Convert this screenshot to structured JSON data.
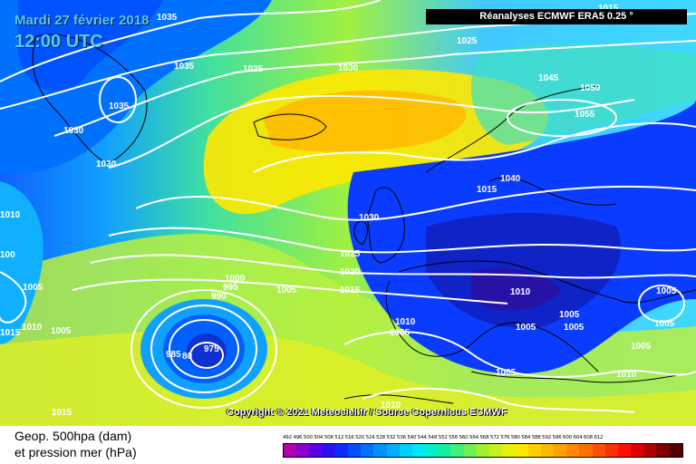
{
  "header": {
    "date": "Mardi 27 février 2018",
    "time": "12:00 UTC",
    "source": "Réanalyses ECMWF ERA5 0.25 °",
    "copyright": "Copyright © 2021 Meteociel.fr / Source Copernicus ECMWF"
  },
  "legend": {
    "field_line1": "Geop. 500hpa (dam)",
    "field_line2": "et pression mer (hPa)",
    "scale_text": "492 496 500 504 508 512 516 520 524 528 532 536 540 544 548 552 556 560 564 568 572 576 580 584 588 592 596 600 604 608 612",
    "scale_colors": [
      "#b000b0",
      "#8a00d0",
      "#5a00e8",
      "#2a10f0",
      "#0a2cff",
      "#0050ff",
      "#0070ff",
      "#0090ff",
      "#00b0ff",
      "#00d0ff",
      "#00e8f0",
      "#00f0c8",
      "#10f0a0",
      "#40f078",
      "#70f050",
      "#a0f030",
      "#c8f020",
      "#e8f010",
      "#ffe800",
      "#ffd000",
      "#ffb800",
      "#ffa000",
      "#ff8800",
      "#ff7000",
      "#ff5000",
      "#ff3000",
      "#ff1000",
      "#e00000",
      "#b00000",
      "#800000",
      "#500000"
    ]
  },
  "isobars": [
    {
      "id": "l1035a",
      "text": "1035"
    },
    {
      "id": "l1035b",
      "text": "1035"
    },
    {
      "id": "l1035c",
      "text": "1035"
    },
    {
      "id": "l1030a",
      "text": "1030"
    },
    {
      "id": "l1030b",
      "text": "1030"
    },
    {
      "id": "l1030c",
      "text": "1030"
    },
    {
      "id": "l1030d",
      "text": "1030"
    },
    {
      "id": "l1025a",
      "text": "1025"
    },
    {
      "id": "l1025b",
      "text": "1025"
    },
    {
      "id": "l1025c",
      "text": "1025"
    },
    {
      "id": "l1020",
      "text": "1020"
    },
    {
      "id": "l1015a",
      "text": "1015"
    },
    {
      "id": "l1015b",
      "text": "1015"
    },
    {
      "id": "l1015c",
      "text": "1015"
    },
    {
      "id": "l1015d",
      "text": "1015"
    },
    {
      "id": "l1010a",
      "text": "1010"
    },
    {
      "id": "l1010b",
      "text": "1010"
    },
    {
      "id": "l1010c",
      "text": "1010"
    },
    {
      "id": "l1010d",
      "text": "1010"
    },
    {
      "id": "l1010e",
      "text": "1010"
    },
    {
      "id": "l1010f",
      "text": "1010"
    },
    {
      "id": "l1005a",
      "text": "1005"
    },
    {
      "id": "l1005b",
      "text": "1005"
    },
    {
      "id": "l1005c",
      "text": "1005"
    },
    {
      "id": "l1005d",
      "text": "1005"
    },
    {
      "id": "l1005e",
      "text": "1005"
    },
    {
      "id": "l1005f",
      "text": "1005"
    },
    {
      "id": "l1005g",
      "text": "1005"
    },
    {
      "id": "l1005h",
      "text": "1005"
    },
    {
      "id": "l1005i",
      "text": "1005"
    },
    {
      "id": "l1005j",
      "text": "1005"
    },
    {
      "id": "l1000",
      "text": "1000"
    },
    {
      "id": "l995",
      "text": "995"
    },
    {
      "id": "l990",
      "text": "990"
    },
    {
      "id": "l985",
      "text": "985"
    },
    {
      "id": "l980",
      "text": "80"
    },
    {
      "id": "l975",
      "text": "975"
    },
    {
      "id": "l1040",
      "text": "1040"
    },
    {
      "id": "l1045",
      "text": "1045"
    },
    {
      "id": "l1050",
      "text": "1050"
    },
    {
      "id": "l1055",
      "text": "1055"
    },
    {
      "id": "l1100",
      "text": "100"
    },
    {
      "id": "l1015e",
      "text": "1015"
    },
    {
      "id": "l1005k",
      "text": "1005"
    }
  ]
}
